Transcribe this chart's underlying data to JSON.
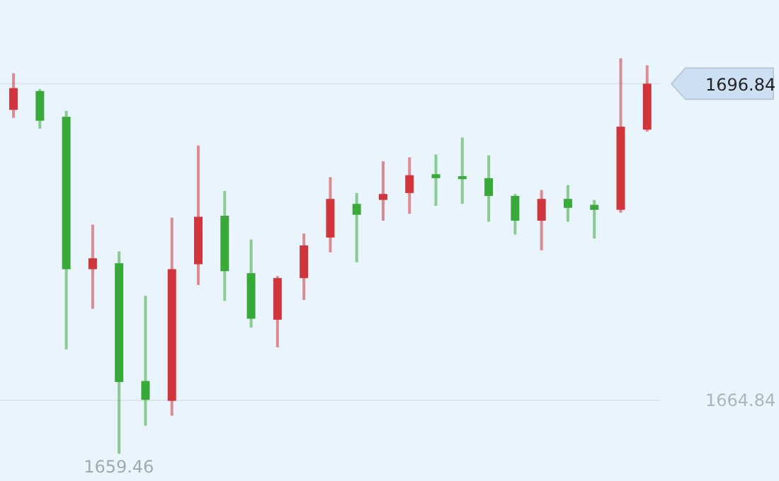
{
  "chart_data": {
    "type": "candlestick",
    "categories": [
      null,
      null,
      null,
      null,
      null,
      null,
      null,
      null,
      null,
      null,
      null,
      null,
      null,
      null,
      null,
      null,
      null,
      null,
      null,
      null,
      null,
      null,
      null,
      null,
      null
    ],
    "ohlc": [
      [
        1694.2,
        1697.9,
        1693.4,
        1696.4
      ],
      [
        1696.1,
        1696.3,
        1692.3,
        1693.1
      ],
      [
        1693.5,
        1694.1,
        1670.0,
        1678.1
      ],
      [
        1678.1,
        1682.6,
        1674.1,
        1679.2
      ],
      [
        1678.7,
        1679.9,
        1659.46,
        1666.7
      ],
      [
        1666.8,
        1675.4,
        1662.3,
        1664.9
      ],
      [
        1664.8,
        1683.3,
        1663.3,
        1678.1
      ],
      [
        1678.6,
        1690.6,
        1676.5,
        1683.4
      ],
      [
        1683.5,
        1686.0,
        1674.9,
        1677.9
      ],
      [
        1677.7,
        1681.1,
        1672.2,
        1673.1
      ],
      [
        1673.0,
        1677.4,
        1670.2,
        1677.2
      ],
      [
        1677.2,
        1681.7,
        1675.0,
        1680.5
      ],
      [
        1681.3,
        1687.4,
        1679.8,
        1685.2
      ],
      [
        1684.7,
        1685.8,
        1678.8,
        1683.6
      ],
      [
        1685.1,
        1689.0,
        1683.0,
        1685.7
      ],
      [
        1685.8,
        1689.4,
        1683.7,
        1687.6
      ],
      [
        1687.7,
        1689.7,
        1684.5,
        1687.3
      ],
      [
        1687.5,
        1691.4,
        1684.7,
        1687.2
      ],
      [
        1687.3,
        1689.6,
        1682.9,
        1685.5
      ],
      [
        1685.5,
        1685.7,
        1681.6,
        1683.0
      ],
      [
        1683.0,
        1686.1,
        1680.0,
        1685.2
      ],
      [
        1685.2,
        1686.6,
        1682.9,
        1684.3
      ],
      [
        1684.6,
        1685.1,
        1681.2,
        1684.1
      ],
      [
        1684.1,
        1699.4,
        1683.8,
        1692.5
      ],
      [
        1692.2,
        1698.7,
        1692.0,
        1696.84
      ]
    ],
    "colors": [
      "#d0353b",
      "#39a939",
      "#39a939",
      "#d0353b",
      "#39a939",
      "#39a939",
      "#d0353b",
      "#d0353b",
      "#39a939",
      "#39a939",
      "#d0353b",
      "#d0353b",
      "#d0353b",
      "#39a939",
      "#d0353b",
      "#d0353b",
      "#39a939",
      "#39a939",
      "#39a939",
      "#39a939",
      "#d0353b",
      "#39a939",
      "#39a939",
      "#d0353b",
      "#d0353b"
    ],
    "ylim": [
      1656.7,
      1705.3
    ],
    "yticks": [
      1664.84,
      1696.84
    ],
    "annotations": [
      {
        "text": "1659.46",
        "y": 1659.46
      }
    ],
    "grid": "y"
  }
}
